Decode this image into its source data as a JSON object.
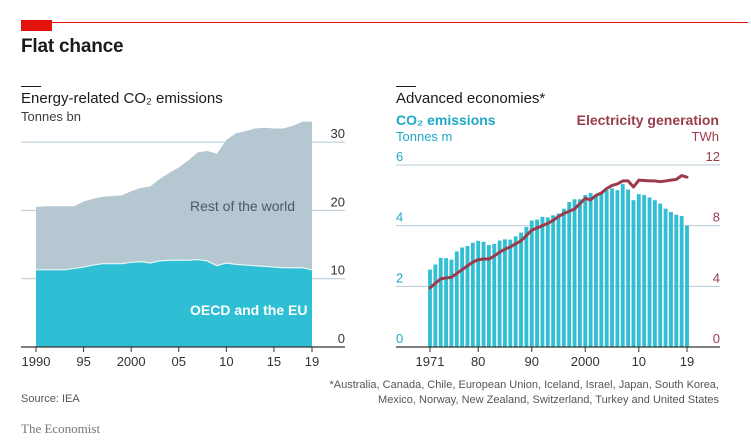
{
  "header": {
    "title": "Flat chance"
  },
  "footer": {
    "source": "Source: IEA",
    "footnote_line1": "*Australia, Canada, Chile, European Union, Iceland, Israel, Japan, South Korea,",
    "footnote_line2": "Mexico, Norway, New Zealand, Switzerland, Turkey and United States",
    "brand": "The Economist"
  },
  "colors": {
    "accent_red": "#e3120b",
    "oecd": "#2ebfd4",
    "rest": "#b5c7d1",
    "bars": "#33bfd3",
    "line": "#9a3c4d",
    "grid": "#b7cbd6"
  },
  "chart_data": [
    {
      "type": "area",
      "title": "Energy-related CO₂ emissions",
      "ylabel": "Tonnes bn",
      "xlabel": "",
      "ylim": [
        0,
        30
      ],
      "yticks": [
        "0",
        "10",
        "20",
        "30"
      ],
      "xticks": [
        {
          "year": 1990,
          "label": "1990"
        },
        {
          "year": 1995,
          "label": "95"
        },
        {
          "year": 2000,
          "label": "2000"
        },
        {
          "year": 2005,
          "label": "05"
        },
        {
          "year": 2010,
          "label": "10"
        },
        {
          "year": 2015,
          "label": "15"
        },
        {
          "year": 2019,
          "label": "19"
        }
      ],
      "x": [
        1990,
        1991,
        1992,
        1993,
        1994,
        1995,
        1996,
        1997,
        1998,
        1999,
        2000,
        2001,
        2002,
        2003,
        2004,
        2005,
        2006,
        2007,
        2008,
        2009,
        2010,
        2011,
        2012,
        2013,
        2014,
        2015,
        2016,
        2017,
        2018,
        2019
      ],
      "stacked": true,
      "series": [
        {
          "name": "OECD and the EU",
          "values": [
            11.3,
            11.3,
            11.3,
            11.3,
            11.5,
            11.7,
            12.0,
            12.2,
            12.2,
            12.2,
            12.4,
            12.5,
            12.3,
            12.6,
            12.7,
            12.7,
            12.7,
            12.8,
            12.6,
            11.9,
            12.3,
            12.1,
            12.0,
            11.9,
            11.8,
            11.7,
            11.6,
            11.6,
            11.6,
            11.3
          ]
        },
        {
          "name": "Rest of the world",
          "values": [
            9.2,
            9.3,
            9.3,
            9.3,
            9.1,
            9.6,
            9.7,
            9.8,
            9.9,
            10.0,
            10.4,
            10.8,
            11.2,
            12.0,
            12.8,
            13.6,
            14.6,
            15.7,
            16.1,
            16.4,
            18.0,
            19.2,
            19.6,
            20.1,
            20.3,
            20.3,
            20.4,
            20.8,
            21.4,
            21.7
          ]
        }
      ],
      "annotations": [
        "Rest of the world",
        "OECD and the EU"
      ]
    },
    {
      "type": "bar",
      "title": "Advanced economies*",
      "x": [
        1971,
        1972,
        1973,
        1974,
        1975,
        1976,
        1977,
        1978,
        1979,
        1980,
        1981,
        1982,
        1983,
        1984,
        1985,
        1986,
        1987,
        1988,
        1989,
        1990,
        1991,
        1992,
        1993,
        1994,
        1995,
        1996,
        1997,
        1998,
        1999,
        2000,
        2001,
        2002,
        2003,
        2004,
        2005,
        2006,
        2007,
        2008,
        2009,
        2010,
        2011,
        2012,
        2013,
        2014,
        2015,
        2016,
        2017,
        2018,
        2019
      ],
      "xticks": [
        {
          "year": 1971,
          "label": "1971"
        },
        {
          "year": 1980,
          "label": "80"
        },
        {
          "year": 1990,
          "label": "90"
        },
        {
          "year": 2000,
          "label": "2000"
        },
        {
          "year": 2010,
          "label": "10"
        },
        {
          "year": 2019,
          "label": "19"
        }
      ],
      "series": [
        {
          "name": "CO₂ emissions",
          "unit": "Tonnes m",
          "axis": "left",
          "type": "bar",
          "ylim": [
            0,
            6
          ],
          "yticks": [
            "0",
            "2",
            "4",
            "6"
          ],
          "values": [
            2.55,
            2.72,
            2.94,
            2.93,
            2.88,
            3.15,
            3.28,
            3.33,
            3.44,
            3.5,
            3.47,
            3.36,
            3.4,
            3.51,
            3.55,
            3.54,
            3.65,
            3.77,
            3.96,
            4.17,
            4.2,
            4.29,
            4.27,
            4.34,
            4.4,
            4.56,
            4.78,
            4.87,
            4.87,
            5.01,
            5.08,
            4.98,
            5.06,
            5.17,
            5.23,
            5.17,
            5.37,
            5.19,
            4.84,
            5.04,
            5.01,
            4.93,
            4.84,
            4.73,
            4.56,
            4.45,
            4.36,
            4.32,
            4.0
          ]
        },
        {
          "name": "Electricity generation",
          "unit": "TWh",
          "axis": "right",
          "type": "line",
          "ylim": [
            0,
            12
          ],
          "yticks": [
            "0",
            "4",
            "8",
            "12"
          ],
          "values": [
            3.9,
            4.2,
            4.5,
            4.55,
            4.6,
            4.85,
            5.1,
            5.35,
            5.6,
            5.75,
            5.8,
            5.8,
            6.0,
            6.25,
            6.45,
            6.6,
            6.8,
            7.0,
            7.35,
            7.7,
            7.85,
            8.0,
            8.15,
            8.35,
            8.6,
            8.8,
            8.95,
            9.1,
            9.45,
            9.8,
            9.7,
            10.0,
            10.15,
            10.45,
            10.65,
            10.75,
            10.95,
            10.95,
            10.55,
            11.0,
            10.98,
            10.95,
            10.95,
            10.9,
            10.95,
            11.0,
            11.05,
            11.3,
            11.2
          ]
        }
      ]
    }
  ]
}
